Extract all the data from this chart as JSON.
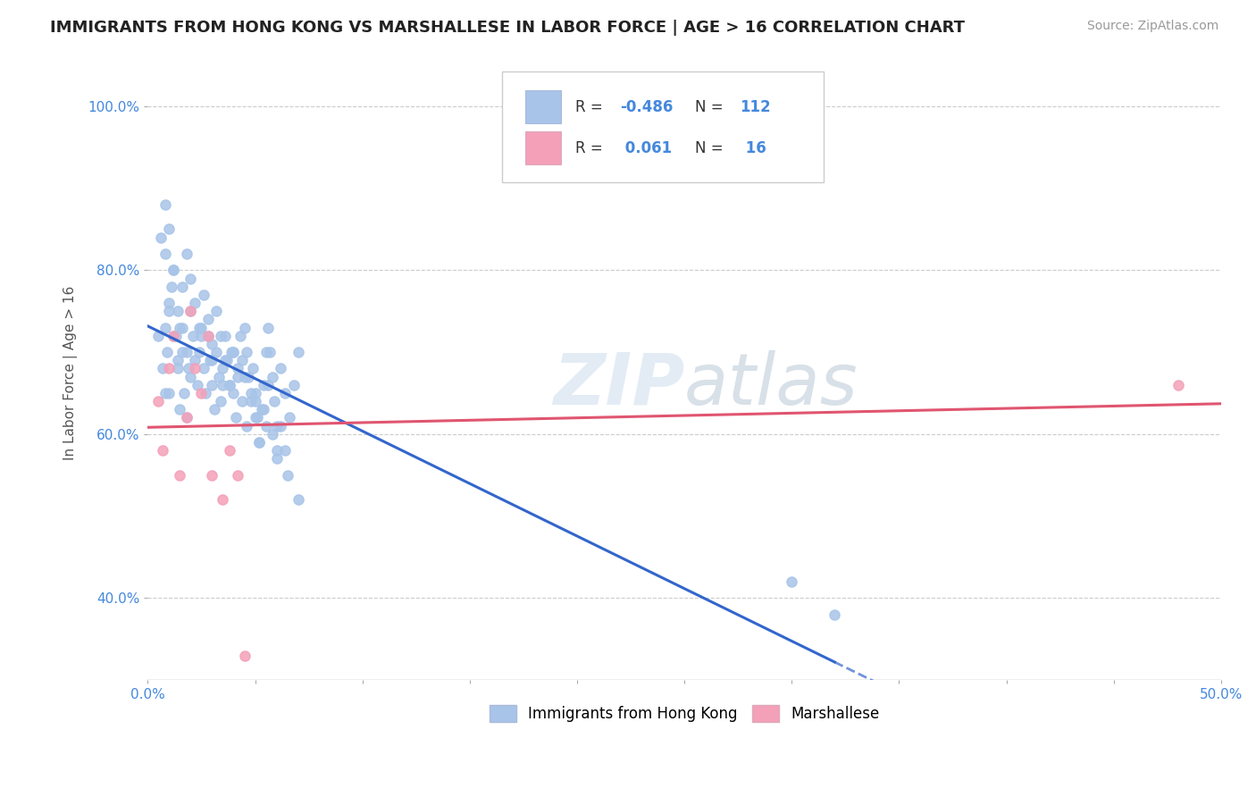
{
  "title": "IMMIGRANTS FROM HONG KONG VS MARSHALLESE IN LABOR FORCE | AGE > 16 CORRELATION CHART",
  "source": "Source: ZipAtlas.com",
  "ylabel": "In Labor Force | Age > 16",
  "xlim": [
    0.0,
    0.5
  ],
  "ylim": [
    0.3,
    1.05
  ],
  "yticks": [
    0.4,
    0.6,
    0.8,
    1.0
  ],
  "yticklabels": [
    "40.0%",
    "60.0%",
    "80.0%",
    "100.0%"
  ],
  "xtick_positions": [
    0.0,
    0.05,
    0.1,
    0.15,
    0.2,
    0.25,
    0.3,
    0.35,
    0.4,
    0.45,
    0.5
  ],
  "hk_color": "#a8c4e8",
  "marsh_color": "#f4a0b8",
  "hk_line_color": "#3366cc",
  "marsh_line_color": "#e05570",
  "R_hk": -0.486,
  "N_hk": 112,
  "R_marsh": 0.061,
  "N_marsh": 16,
  "legend_label_hk": "Immigrants from Hong Kong",
  "legend_label_marsh": "Marshallese",
  "background_color": "#ffffff",
  "grid_color": "#cccccc",
  "axis_color": "#4488dd",
  "hk_scatter_x": [
    0.005,
    0.007,
    0.008,
    0.009,
    0.01,
    0.011,
    0.012,
    0.013,
    0.014,
    0.015,
    0.016,
    0.017,
    0.018,
    0.019,
    0.02,
    0.021,
    0.022,
    0.023,
    0.024,
    0.025,
    0.026,
    0.027,
    0.028,
    0.029,
    0.03,
    0.031,
    0.032,
    0.033,
    0.034,
    0.035,
    0.036,
    0.037,
    0.038,
    0.039,
    0.04,
    0.041,
    0.042,
    0.043,
    0.044,
    0.045,
    0.046,
    0.047,
    0.048,
    0.049,
    0.05,
    0.051,
    0.052,
    0.053,
    0.054,
    0.055,
    0.056,
    0.057,
    0.058,
    0.059,
    0.06,
    0.062,
    0.064,
    0.066,
    0.068,
    0.07,
    0.008,
    0.01,
    0.012,
    0.014,
    0.016,
    0.018,
    0.02,
    0.022,
    0.024,
    0.026,
    0.028,
    0.03,
    0.032,
    0.034,
    0.036,
    0.038,
    0.04,
    0.042,
    0.044,
    0.046,
    0.048,
    0.05,
    0.052,
    0.054,
    0.056,
    0.058,
    0.06,
    0.062,
    0.064,
    0.006,
    0.008,
    0.01,
    0.012,
    0.014,
    0.016,
    0.018,
    0.02,
    0.025,
    0.03,
    0.035,
    0.04,
    0.045,
    0.05,
    0.055,
    0.06,
    0.065,
    0.07,
    0.008,
    0.3,
    0.01,
    0.015,
    0.32
  ],
  "hk_scatter_y": [
    0.72,
    0.68,
    0.65,
    0.7,
    0.75,
    0.78,
    0.8,
    0.72,
    0.68,
    0.73,
    0.7,
    0.65,
    0.62,
    0.68,
    0.75,
    0.72,
    0.69,
    0.66,
    0.7,
    0.73,
    0.68,
    0.65,
    0.72,
    0.69,
    0.66,
    0.63,
    0.7,
    0.67,
    0.64,
    0.68,
    0.72,
    0.69,
    0.66,
    0.7,
    0.65,
    0.62,
    0.68,
    0.72,
    0.69,
    0.73,
    0.7,
    0.67,
    0.64,
    0.68,
    0.65,
    0.62,
    0.59,
    0.63,
    0.66,
    0.7,
    0.73,
    0.7,
    0.67,
    0.64,
    0.61,
    0.68,
    0.65,
    0.62,
    0.66,
    0.7,
    0.82,
    0.85,
    0.8,
    0.75,
    0.78,
    0.82,
    0.79,
    0.76,
    0.73,
    0.77,
    0.74,
    0.71,
    0.75,
    0.72,
    0.69,
    0.66,
    0.7,
    0.67,
    0.64,
    0.61,
    0.65,
    0.62,
    0.59,
    0.63,
    0.66,
    0.6,
    0.57,
    0.61,
    0.58,
    0.84,
    0.73,
    0.76,
    0.72,
    0.69,
    0.73,
    0.7,
    0.67,
    0.72,
    0.69,
    0.66,
    0.7,
    0.67,
    0.64,
    0.61,
    0.58,
    0.55,
    0.52,
    0.88,
    0.42,
    0.65,
    0.63,
    0.38
  ],
  "marsh_scatter_x": [
    0.005,
    0.007,
    0.01,
    0.012,
    0.015,
    0.018,
    0.02,
    0.022,
    0.025,
    0.028,
    0.03,
    0.035,
    0.038,
    0.042,
    0.045,
    0.48
  ],
  "marsh_scatter_y": [
    0.64,
    0.58,
    0.68,
    0.72,
    0.55,
    0.62,
    0.75,
    0.68,
    0.65,
    0.72,
    0.55,
    0.52,
    0.58,
    0.55,
    0.33,
    0.66
  ]
}
